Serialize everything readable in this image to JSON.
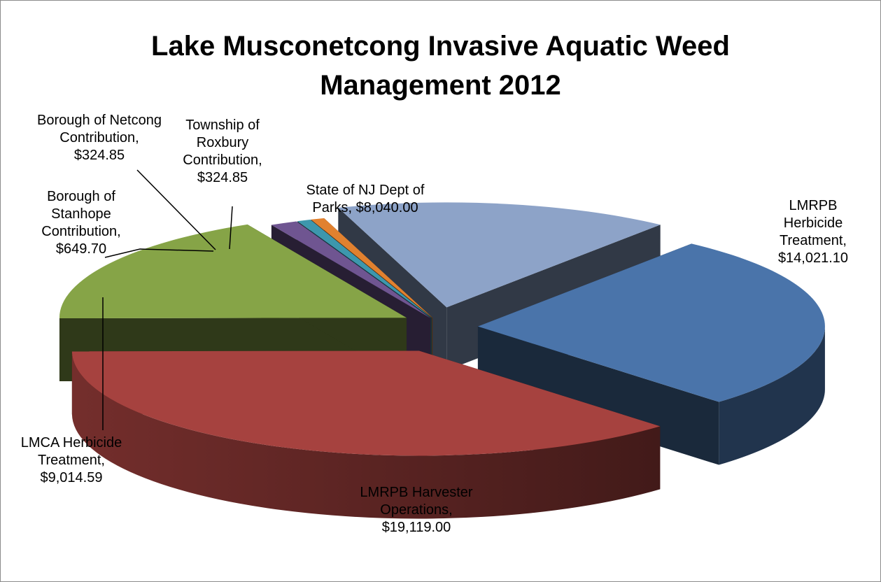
{
  "chart_data": {
    "type": "pie",
    "title_lines": [
      "Lake Musconetcong Invasive Aquatic Weed",
      "Management 2012"
    ],
    "slices": [
      {
        "category": "LMRPB Herbicide Treatment",
        "value": 14021.1,
        "value_label": "$14,021.10",
        "label_lines": [
          "LMRPB",
          "Herbicide",
          "Treatment,",
          "$14,021.10"
        ],
        "color": "#4a74aa"
      },
      {
        "category": "LMRPB Harvester Operations",
        "value": 19119.0,
        "value_label": "$19,119.00",
        "label_lines": [
          "LMRPB Harvester",
          "Operations,",
          "$19,119.00"
        ],
        "color": "#a6423f"
      },
      {
        "category": "LMCA Herbicide Treatment",
        "value": 9014.59,
        "value_label": "$9,014.59",
        "label_lines": [
          "LMCA Herbicide",
          "Treatment,",
          "$9,014.59"
        ],
        "color": "#86a447"
      },
      {
        "category": "Borough of Stanhope Contribution",
        "value": 649.7,
        "value_label": "$649.70",
        "label_lines": [
          "Borough of",
          "Stanhope",
          "Contribution,",
          "$649.70"
        ],
        "color": "#6f5591"
      },
      {
        "category": "Borough of Netcong Contribution",
        "value": 324.85,
        "value_label": "$324.85",
        "label_lines": [
          "Borough of Netcong",
          "Contribution,",
          "$324.85"
        ],
        "color": "#3d97ad"
      },
      {
        "category": "Township of Roxbury Contribution",
        "value": 324.85,
        "value_label": "$324.85",
        "label_lines": [
          "Township of",
          "Roxbury",
          "Contribution,",
          "$324.85"
        ],
        "color": "#e1812f"
      },
      {
        "category": "State of NJ Dept of Parks",
        "value": 8040.0,
        "value_label": "$8,040.00",
        "label_lines": [
          "State of NJ Dept of",
          "Parks,  $8,040.00"
        ],
        "color": "#8da3c8"
      }
    ],
    "view": "3d-exploded",
    "legend": "none"
  }
}
